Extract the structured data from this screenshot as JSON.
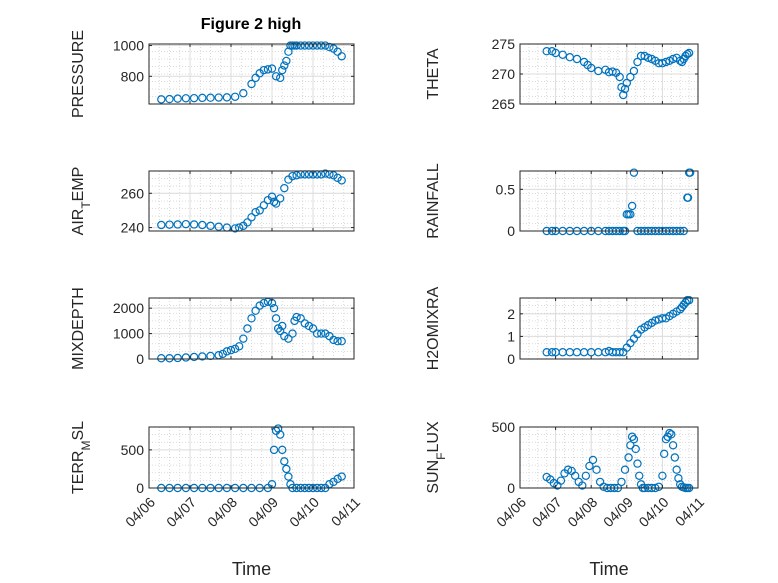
{
  "figure": {
    "title": "Figure 2 high"
  },
  "chart_data": [
    {
      "type": "scatter",
      "ylabel": "PRESSURE",
      "xlabel": "",
      "xlim": [
        0,
        5
      ],
      "ylim": [
        620,
        1010
      ],
      "yticks": [
        800,
        1000
      ],
      "x": [
        0.3,
        0.5,
        0.7,
        0.9,
        1.1,
        1.3,
        1.5,
        1.7,
        1.9,
        2.1,
        2.3,
        2.5,
        2.6,
        2.7,
        2.8,
        2.9,
        3.0,
        3.1,
        3.2,
        3.25,
        3.3,
        3.35,
        3.4,
        3.45,
        3.5,
        3.55,
        3.6,
        3.7,
        3.8,
        3.9,
        4.0,
        4.1,
        4.2,
        4.3,
        4.4,
        4.5,
        4.6,
        4.7
      ],
      "y": [
        650,
        652,
        655,
        657,
        658,
        660,
        661,
        662,
        663,
        667,
        690,
        750,
        790,
        820,
        840,
        845,
        850,
        800,
        790,
        840,
        870,
        900,
        960,
        1000,
        1000,
        1000,
        1000,
        1000,
        1000,
        1000,
        1000,
        1000,
        1000,
        1000,
        990,
        980,
        960,
        930
      ]
    },
    {
      "type": "scatter",
      "ylabel": "THETA",
      "xlabel": "",
      "xlim": [
        0,
        5
      ],
      "ylim": [
        265,
        275
      ],
      "yticks": [
        265,
        270,
        275
      ],
      "x": [
        0.75,
        0.9,
        1.0,
        1.2,
        1.4,
        1.6,
        1.8,
        1.9,
        2.0,
        2.2,
        2.4,
        2.5,
        2.6,
        2.7,
        2.8,
        2.85,
        2.9,
        2.95,
        3.0,
        3.1,
        3.2,
        3.3,
        3.4,
        3.5,
        3.6,
        3.7,
        3.8,
        3.9,
        4.0,
        4.1,
        4.2,
        4.3,
        4.4,
        4.5,
        4.55,
        4.6,
        4.65,
        4.7,
        4.75
      ],
      "y": [
        273.8,
        273.8,
        273.5,
        273.2,
        272.8,
        272.5,
        272,
        271.5,
        271,
        270.5,
        270.7,
        270.3,
        270.4,
        270.2,
        269.5,
        267.8,
        266.5,
        267.5,
        268.5,
        269.5,
        270.5,
        272,
        273,
        273,
        272.7,
        272.5,
        272.2,
        271.8,
        271.8,
        272,
        272.2,
        272.5,
        272.7,
        272.2,
        272.0,
        272.5,
        273,
        273.3,
        273.5
      ]
    },
    {
      "type": "scatter",
      "ylabel": "AIR_TEMP",
      "xlabel": "",
      "xlim": [
        0,
        5
      ],
      "ylim": [
        238,
        273
      ],
      "yticks": [
        240,
        260
      ],
      "x": [
        0.3,
        0.5,
        0.7,
        0.9,
        1.1,
        1.3,
        1.5,
        1.7,
        1.9,
        2.1,
        2.2,
        2.3,
        2.4,
        2.5,
        2.6,
        2.7,
        2.8,
        2.9,
        3.0,
        3.05,
        3.1,
        3.2,
        3.3,
        3.4,
        3.5,
        3.6,
        3.7,
        3.8,
        3.9,
        4.0,
        4.1,
        4.2,
        4.3,
        4.4,
        4.5,
        4.6,
        4.7
      ],
      "y": [
        241.5,
        241.7,
        241.8,
        242,
        241.8,
        241.5,
        241,
        240.5,
        240,
        239.5,
        240,
        241,
        243,
        246,
        249,
        250,
        253,
        256,
        258,
        255,
        254,
        257,
        263,
        268,
        270,
        270.5,
        271,
        271,
        271,
        271,
        271,
        271,
        271.5,
        271,
        270.5,
        269,
        267.5
      ]
    },
    {
      "type": "scatter",
      "ylabel": "RAINFALL",
      "xlabel": "",
      "xlim": [
        0,
        5
      ],
      "ylim": [
        0,
        0.72
      ],
      "yticks": [
        0,
        0.5
      ],
      "x": [
        0.75,
        0.9,
        1.0,
        1.2,
        1.4,
        1.6,
        1.8,
        2.0,
        2.2,
        2.4,
        2.5,
        2.6,
        2.7,
        2.8,
        2.9,
        2.95,
        3.0,
        3.05,
        3.1,
        3.15,
        3.2,
        3.3,
        3.4,
        3.5,
        3.6,
        3.7,
        3.8,
        3.9,
        4.0,
        4.1,
        4.2,
        4.3,
        4.4,
        4.5,
        4.6,
        4.7,
        4.72,
        4.75,
        4.78
      ],
      "y": [
        0,
        0,
        0,
        0,
        0,
        0,
        0,
        0,
        0,
        0,
        0,
        0,
        0,
        0,
        0,
        0,
        0.2,
        0.2,
        0.2,
        0.3,
        0.7,
        0,
        0,
        0,
        0,
        0,
        0,
        0,
        0,
        0,
        0,
        0,
        0,
        0,
        0,
        0.4,
        0.4,
        0.7,
        0.7
      ]
    },
    {
      "type": "scatter",
      "ylabel": "MIXDEPTH",
      "xlabel": "",
      "xlim": [
        0,
        5
      ],
      "ylim": [
        0,
        2400
      ],
      "yticks": [
        0,
        1000,
        2000
      ],
      "x": [
        0.3,
        0.5,
        0.7,
        0.9,
        1.1,
        1.3,
        1.5,
        1.7,
        1.8,
        1.9,
        2.0,
        2.1,
        2.2,
        2.3,
        2.4,
        2.5,
        2.6,
        2.7,
        2.8,
        2.9,
        3.0,
        3.05,
        3.1,
        3.15,
        3.2,
        3.25,
        3.3,
        3.4,
        3.5,
        3.55,
        3.6,
        3.7,
        3.8,
        3.9,
        4.0,
        4.1,
        4.2,
        4.3,
        4.4,
        4.5,
        4.6,
        4.7
      ],
      "y": [
        30,
        30,
        40,
        60,
        80,
        100,
        120,
        150,
        200,
        300,
        350,
        400,
        500,
        800,
        1200,
        1600,
        1900,
        2100,
        2200,
        2250,
        2200,
        2000,
        1600,
        1200,
        1100,
        1300,
        900,
        800,
        1000,
        1500,
        1650,
        1600,
        1400,
        1300,
        1200,
        1000,
        1000,
        1000,
        900,
        750,
        700,
        700
      ]
    },
    {
      "type": "scatter",
      "ylabel": "H2OMIXRA",
      "xlabel": "",
      "xlim": [
        0,
        5
      ],
      "ylim": [
        0,
        2.7
      ],
      "yticks": [
        0,
        1,
        2
      ],
      "x": [
        0.75,
        0.9,
        1.0,
        1.2,
        1.4,
        1.6,
        1.8,
        2.0,
        2.2,
        2.4,
        2.5,
        2.6,
        2.7,
        2.8,
        2.9,
        3.0,
        3.1,
        3.2,
        3.3,
        3.4,
        3.5,
        3.6,
        3.7,
        3.8,
        3.9,
        4.0,
        4.1,
        4.2,
        4.3,
        4.4,
        4.5,
        4.55,
        4.6,
        4.65,
        4.7,
        4.75
      ],
      "y": [
        0.3,
        0.3,
        0.3,
        0.3,
        0.3,
        0.3,
        0.3,
        0.3,
        0.3,
        0.3,
        0.35,
        0.3,
        0.3,
        0.3,
        0.3,
        0.5,
        0.7,
        0.9,
        1.1,
        1.3,
        1.4,
        1.5,
        1.6,
        1.7,
        1.75,
        1.8,
        1.8,
        1.9,
        2.0,
        2.1,
        2.2,
        2.3,
        2.4,
        2.5,
        2.6,
        2.6
      ]
    },
    {
      "type": "scatter",
      "ylabel": "TERR_MSL",
      "xlabel": "Time",
      "xlim": [
        0,
        5
      ],
      "ylim": [
        0,
        800
      ],
      "yticks": [
        0,
        500
      ],
      "xticks": [
        0,
        1,
        2,
        3,
        4,
        5
      ],
      "xticklabels": [
        "04/06",
        "04/07",
        "04/08",
        "04/09",
        "04/10",
        "04/11"
      ],
      "x": [
        0.3,
        0.5,
        0.7,
        0.9,
        1.1,
        1.3,
        1.5,
        1.7,
        1.9,
        2.1,
        2.3,
        2.5,
        2.7,
        2.9,
        3.0,
        3.05,
        3.1,
        3.15,
        3.2,
        3.25,
        3.3,
        3.35,
        3.4,
        3.45,
        3.5,
        3.6,
        3.7,
        3.8,
        3.9,
        4.0,
        4.1,
        4.2,
        4.3,
        4.4,
        4.5,
        4.6,
        4.7
      ],
      "y": [
        0,
        0,
        0,
        0,
        0,
        0,
        0,
        0,
        0,
        0,
        0,
        0,
        0,
        0,
        50,
        500,
        750,
        780,
        700,
        500,
        350,
        250,
        150,
        50,
        0,
        0,
        0,
        0,
        0,
        0,
        0,
        0,
        0,
        50,
        80,
        120,
        150
      ]
    },
    {
      "type": "scatter",
      "ylabel": "SUN_FLUX",
      "xlabel": "Time",
      "xlim": [
        0,
        5
      ],
      "ylim": [
        0,
        500
      ],
      "yticks": [
        0,
        500
      ],
      "xticks": [
        0,
        1,
        2,
        3,
        4,
        5
      ],
      "xticklabels": [
        "04/06",
        "04/07",
        "04/08",
        "04/09",
        "04/10",
        "04/11"
      ],
      "x": [
        0.75,
        0.85,
        0.95,
        1.05,
        1.15,
        1.25,
        1.35,
        1.45,
        1.55,
        1.65,
        1.75,
        1.85,
        1.95,
        2.05,
        2.15,
        2.25,
        2.35,
        2.45,
        2.55,
        2.65,
        2.75,
        2.85,
        2.95,
        3.05,
        3.1,
        3.15,
        3.2,
        3.25,
        3.3,
        3.35,
        3.4,
        3.45,
        3.5,
        3.6,
        3.7,
        3.8,
        3.9,
        4.0,
        4.05,
        4.1,
        4.15,
        4.2,
        4.25,
        4.3,
        4.35,
        4.4,
        4.45,
        4.5,
        4.55,
        4.6,
        4.65,
        4.7,
        4.75
      ],
      "y": [
        90,
        70,
        40,
        20,
        60,
        120,
        150,
        140,
        100,
        50,
        20,
        100,
        180,
        230,
        150,
        50,
        10,
        0,
        0,
        0,
        0,
        50,
        150,
        250,
        350,
        420,
        400,
        320,
        200,
        100,
        30,
        0,
        0,
        0,
        0,
        0,
        10,
        100,
        280,
        400,
        420,
        450,
        440,
        350,
        250,
        150,
        80,
        30,
        10,
        5,
        0,
        0,
        0
      ]
    }
  ]
}
